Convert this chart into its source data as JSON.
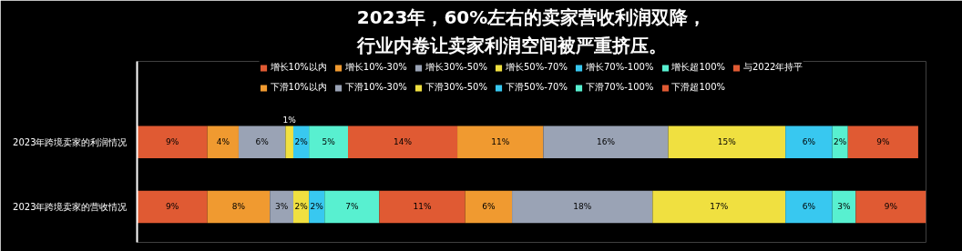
{
  "chart_data": {
    "type": "bar",
    "orientation": "horizontal",
    "stacked": true,
    "grid": false,
    "legend": "top",
    "title": "2023年，60%左右的卖家营收利润双降，行业内卷让卖家利润空间被严重挤压。",
    "categories": [
      "2023年跨境卖家的利润情况",
      "2023年跨境卖家的营收情况"
    ],
    "series": [
      {
        "name": "增长10%以内",
        "color": "#e05a33",
        "values": [
          9,
          9
        ],
        "value_labels": [
          "9%",
          "9%"
        ]
      },
      {
        "name": "增长10%-30%",
        "color": "#f09a30",
        "values": [
          4,
          8
        ],
        "value_labels": [
          "4%",
          "8%"
        ]
      },
      {
        "name": "增长30%-50%",
        "color": "#9aa3b5",
        "values": [
          6,
          3
        ],
        "value_labels": [
          "6%",
          "3%"
        ]
      },
      {
        "name": "增长50%-70%",
        "color": "#f0e040",
        "values": [
          1,
          2
        ],
        "value_labels": [
          "1%",
          "2%"
        ]
      },
      {
        "name": "增长70%-100%",
        "color": "#38c8f0",
        "values": [
          2,
          2
        ],
        "value_labels": [
          "2%",
          "2%"
        ]
      },
      {
        "name": "增长超100%",
        "color": "#58f0d0",
        "values": [
          5,
          7
        ],
        "value_labels": [
          "5%",
          "7%"
        ]
      },
      {
        "name": "与2022年持平",
        "color": "#e05a33",
        "values": [
          14,
          11
        ],
        "value_labels": [
          "14%",
          "11%"
        ]
      },
      {
        "name": "下滑10%以内",
        "color": "#f09a30",
        "values": [
          11,
          6
        ],
        "value_labels": [
          "11%",
          "6%"
        ]
      },
      {
        "name": "下滑10%-30%",
        "color": "#9aa3b5",
        "values": [
          16,
          18
        ],
        "value_labels": [
          "16%",
          "18%"
        ]
      },
      {
        "name": "下滑30%-50%",
        "color": "#f0e040",
        "values": [
          15,
          17
        ],
        "value_labels": [
          "15%",
          "17%"
        ]
      },
      {
        "name": "下滑50%-70%",
        "color": "#38c8f0",
        "values": [
          6,
          6
        ],
        "value_labels": [
          "6%",
          "6%"
        ]
      },
      {
        "name": "下滑70%-100%",
        "color": "#58f0d0",
        "values": [
          2,
          3
        ],
        "value_labels": [
          "2%",
          "3%"
        ]
      },
      {
        "name": "下滑超100%",
        "color": "#e05a33",
        "values": [
          9,
          9
        ],
        "value_labels": [
          "9%",
          "9%"
        ]
      }
    ]
  }
}
